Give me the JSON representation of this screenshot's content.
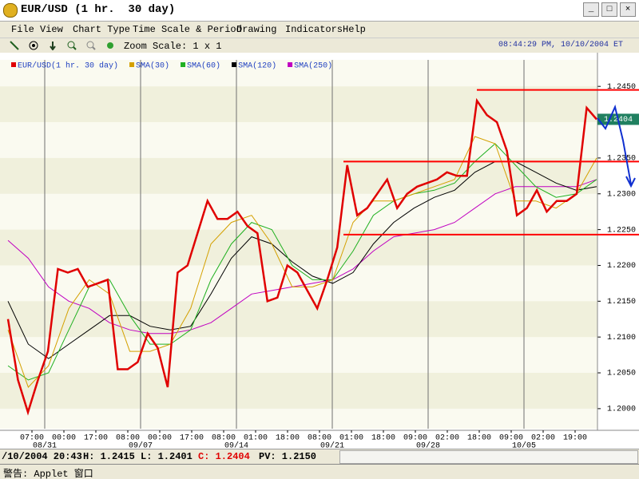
{
  "window": {
    "title": "EUR/USD (1 hr.  30 day)"
  },
  "menu": [
    "File",
    "View",
    "Chart Type",
    "Time Scale & Period",
    "Drawing",
    "Indicators",
    "Help"
  ],
  "toolbar": {
    "zoom": "Zoom Scale: 1 x 1",
    "clock": "08:44:29 PM, 10/10/2004 ET"
  },
  "chart": {
    "type": "line",
    "legend": [
      "EUR/USD(1 hr.  30 day)",
      "SMA(30)",
      "SMA(60)",
      "SMA(120)",
      "SMA(250)"
    ],
    "ylim": [
      1.1972,
      1.2487
    ],
    "yticks": [
      {
        "value": 1.2,
        "label": "1.2000"
      },
      {
        "value": 1.205,
        "label": "1.2050"
      },
      {
        "value": 1.21,
        "label": "1.2100"
      },
      {
        "value": 1.215,
        "label": "1.2150"
      },
      {
        "value": 1.22,
        "label": "1.2200"
      },
      {
        "value": 1.225,
        "label": "1.2250"
      },
      {
        "value": 1.23,
        "label": "1.2300"
      },
      {
        "value": 1.235,
        "label": "1.2350"
      },
      {
        "value": 1.24,
        "label": "1.2400"
      },
      {
        "value": 1.245,
        "label": "1.2450"
      }
    ],
    "x_labels": [
      "07:00",
      "00:00",
      "17:00",
      "08:00",
      "00:00",
      "17:00",
      "08:00",
      "01:00",
      "18:00",
      "08:00",
      "01:00",
      "18:00",
      "09:00",
      "02:00",
      "18:00",
      "09:00",
      "02:00",
      "19:00"
    ],
    "date_labels": [
      "08/31",
      "09/07",
      "09/14",
      "09/21",
      "09/28",
      "10/05"
    ],
    "series": [
      {
        "name": "EUR/USD(1 hr.  30 day)",
        "color": "#e00000",
        "values": [
          1.2125,
          1.204,
          1.1995,
          1.204,
          1.208,
          1.2195,
          1.219,
          1.2195,
          1.217,
          1.2175,
          1.218,
          1.2055,
          1.2055,
          1.2065,
          1.2105,
          1.2085,
          1.203,
          1.219,
          1.22,
          1.2245,
          1.229,
          1.2265,
          1.2265,
          1.2275,
          1.2255,
          1.2245,
          1.215,
          1.2155,
          1.22,
          1.219,
          1.2165,
          1.214,
          1.218,
          1.2225,
          1.234,
          1.227,
          1.228,
          1.23,
          1.232,
          1.228,
          1.23,
          1.231,
          1.2315,
          1.232,
          1.233,
          1.2325,
          1.2325,
          1.243,
          1.241,
          1.24,
          1.236,
          1.227,
          1.228,
          1.2305,
          1.2275,
          1.229,
          1.229,
          1.23,
          1.242,
          1.2404
        ]
      },
      {
        "name": "SMA(30)",
        "color": "#d4a000",
        "values": [
          1.211,
          1.203,
          1.206,
          1.214,
          1.218,
          1.216,
          1.208,
          1.208,
          1.209,
          1.214,
          1.223,
          1.226,
          1.227,
          1.223,
          1.217,
          1.217,
          1.218,
          1.226,
          1.229,
          1.229,
          1.23,
          1.231,
          1.232,
          1.238,
          1.237,
          1.229,
          1.229,
          1.228,
          1.23,
          1.235
        ]
      },
      {
        "name": "SMA(60)",
        "color": "#20b020",
        "values": [
          1.206,
          1.204,
          1.205,
          1.211,
          1.217,
          1.218,
          1.213,
          1.209,
          1.209,
          1.211,
          1.218,
          1.223,
          1.226,
          1.225,
          1.22,
          1.218,
          1.218,
          1.222,
          1.227,
          1.229,
          1.23,
          1.2305,
          1.2315,
          1.2345,
          1.237,
          1.234,
          1.231,
          1.2295,
          1.23,
          1.232
        ]
      },
      {
        "name": "SMA(120)",
        "color": "#000000",
        "values": [
          1.215,
          1.209,
          1.207,
          1.209,
          1.211,
          1.213,
          1.213,
          1.2115,
          1.211,
          1.2115,
          1.216,
          1.221,
          1.224,
          1.223,
          1.2205,
          1.2185,
          1.2175,
          1.219,
          1.223,
          1.226,
          1.228,
          1.2295,
          1.2305,
          1.233,
          1.2345,
          1.2345,
          1.233,
          1.2315,
          1.2305,
          1.231
        ]
      },
      {
        "name": "SMA(250)",
        "color": "#c000c0",
        "values": [
          1.2235,
          1.221,
          1.217,
          1.215,
          1.214,
          1.212,
          1.211,
          1.2105,
          1.2105,
          1.211,
          1.212,
          1.214,
          1.216,
          1.2165,
          1.217,
          1.2175,
          1.218,
          1.2195,
          1.222,
          1.224,
          1.2245,
          1.225,
          1.226,
          1.228,
          1.23,
          1.231,
          1.231,
          1.231,
          1.231,
          1.232
        ]
      }
    ],
    "levels": [
      1.2445,
      1.2345,
      1.2243
    ],
    "level_color": "#ff0000",
    "current": {
      "value": 1.2404,
      "label": "1.2404"
    }
  },
  "status": {
    "date": "/10/2004 20:43",
    "high": "H: 1.2415",
    "low": "L: 1.2401",
    "close": "C: 1.2404",
    "pivot": "PV: 1.2150"
  },
  "footer": "警告: Applet 窗口"
}
